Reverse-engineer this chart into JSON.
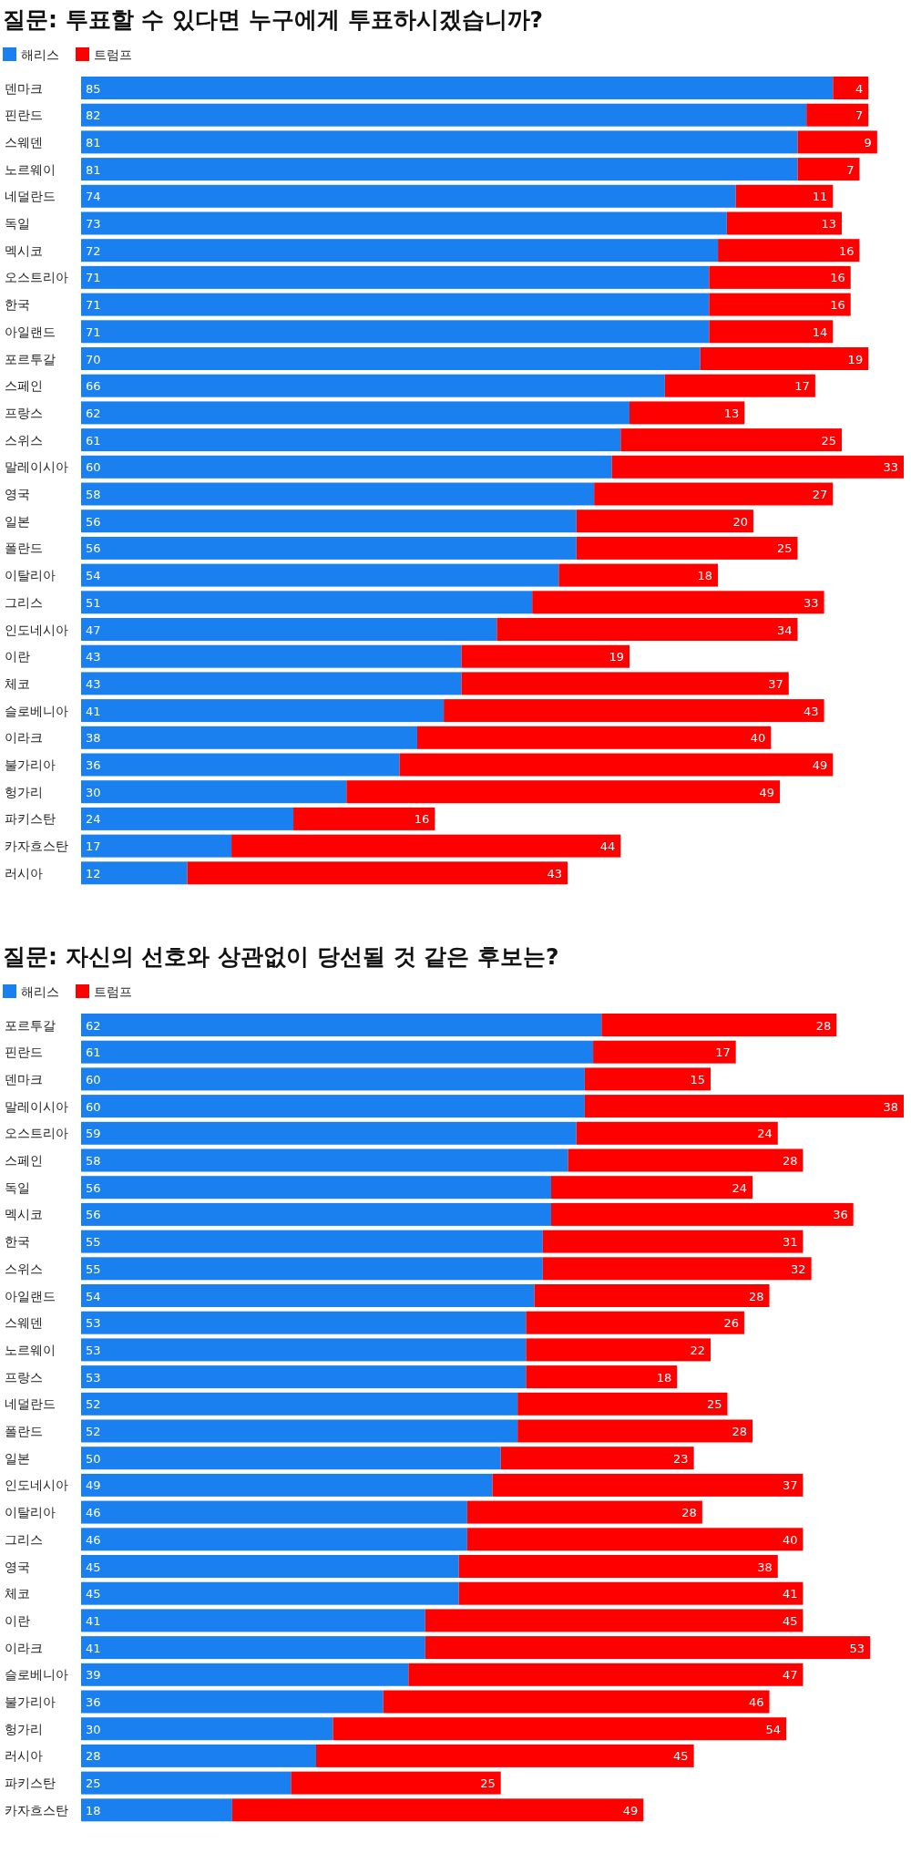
{
  "chart_data": [
    {
      "type": "bar",
      "orientation": "horizontal",
      "stacked": true,
      "data_labels": true,
      "legend": "top left",
      "title": "질문: 투표할 수 있다면 누구에게 투표하시겠습니까?",
      "categories": [
        "덴마크",
        "핀란드",
        "스웨덴",
        "노르웨이",
        "네덜란드",
        "독일",
        "멕시코",
        "오스트리아",
        "한국",
        "아일랜드",
        "포르투갈",
        "스페인",
        "프랑스",
        "스위스",
        "말레이시아",
        "영국",
        "일본",
        "폴란드",
        "이탈리아",
        "그리스",
        "인도네시아",
        "이란",
        "체코",
        "슬로베니아",
        "이라크",
        "불가리아",
        "헝가리",
        "파키스탄",
        "카자흐스탄",
        "러시아"
      ],
      "series": [
        {
          "name": "해리스",
          "color": "#1a80f0",
          "values": [
            85,
            82,
            81,
            81,
            74,
            73,
            72,
            71,
            71,
            71,
            70,
            66,
            62,
            61,
            60,
            58,
            56,
            56,
            54,
            51,
            47,
            43,
            43,
            41,
            38,
            36,
            30,
            24,
            17,
            12
          ]
        },
        {
          "name": "트럼프",
          "color": "#ff0000",
          "values": [
            4,
            7,
            9,
            7,
            11,
            13,
            16,
            16,
            16,
            14,
            19,
            17,
            13,
            25,
            33,
            27,
            20,
            25,
            18,
            33,
            34,
            19,
            37,
            43,
            40,
            49,
            49,
            16,
            44,
            43
          ]
        }
      ]
    },
    {
      "type": "bar",
      "orientation": "horizontal",
      "stacked": true,
      "data_labels": true,
      "legend": "top left",
      "title": "질문: 자신의 선호와 상관없이 당선될 것 같은 후보는?",
      "categories": [
        "포르투갈",
        "핀란드",
        "덴마크",
        "말레이시아",
        "오스트리아",
        "스페인",
        "독일",
        "멕시코",
        "한국",
        "스위스",
        "아일랜드",
        "스웨덴",
        "노르웨이",
        "프랑스",
        "네덜란드",
        "폴란드",
        "일본",
        "인도네시아",
        "이탈리아",
        "그리스",
        "영국",
        "체코",
        "이란",
        "이라크",
        "슬로베니아",
        "불가리아",
        "헝가리",
        "러시아",
        "파키스탄",
        "카자흐스탄"
      ],
      "series": [
        {
          "name": "해리스",
          "color": "#1a80f0",
          "values": [
            62,
            61,
            60,
            60,
            59,
            58,
            56,
            56,
            55,
            55,
            54,
            53,
            53,
            53,
            52,
            52,
            50,
            49,
            46,
            46,
            45,
            45,
            41,
            41,
            39,
            36,
            30,
            28,
            25,
            18
          ]
        },
        {
          "name": "트럼프",
          "color": "#ff0000",
          "values": [
            28,
            17,
            15,
            38,
            24,
            28,
            24,
            36,
            31,
            32,
            28,
            26,
            22,
            18,
            25,
            28,
            23,
            37,
            28,
            40,
            38,
            41,
            45,
            53,
            47,
            46,
            54,
            45,
            25,
            49
          ]
        }
      ]
    }
  ]
}
